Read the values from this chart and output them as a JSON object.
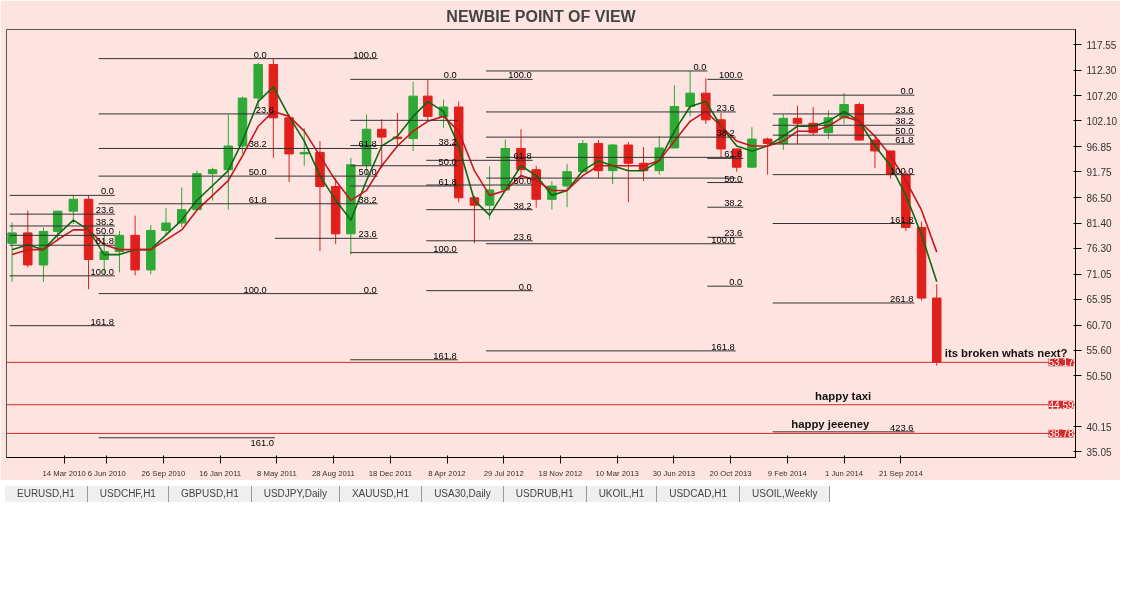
{
  "chart_data": {
    "type": "candlestick",
    "title": "NEWBIE POINT OF VIEW",
    "xlim": [
      "2009-11-20",
      "2015-09-01"
    ],
    "ylim": [
      33.9,
      120.6
    ],
    "xticks": [
      {
        "value": "2010-03-14",
        "label": "14 Mar 2010"
      },
      {
        "value": "2010-06-06",
        "label": "6 Jun 2010"
      },
      {
        "value": "2010-09-26",
        "label": "26 Sep 2010"
      },
      {
        "value": "2011-01-16",
        "label": "16 Jan 2011"
      },
      {
        "value": "2011-05-08",
        "label": "8 May 2011"
      },
      {
        "value": "2011-08-28",
        "label": "28 Aug 2011"
      },
      {
        "value": "2011-12-18",
        "label": "18 Dec 2011"
      },
      {
        "value": "2012-04-08",
        "label": "8 Apr 2012"
      },
      {
        "value": "2012-07-29",
        "label": "29 Jul 2012"
      },
      {
        "value": "2012-11-18",
        "label": "18 Nov 2012"
      },
      {
        "value": "2013-03-10",
        "label": "10 Mar 2013"
      },
      {
        "value": "2013-06-30",
        "label": "30 Jun 2013"
      },
      {
        "value": "2013-10-20",
        "label": "20 Oct 2013"
      },
      {
        "value": "2014-02-09",
        "label": "9 Feb 2014"
      },
      {
        "value": "2014-06-01",
        "label": "1 Jun 2014"
      },
      {
        "value": "2014-09-21",
        "label": "21 Sep 2014"
      }
    ],
    "yticks": [
      117.55,
      {
        "value": 112.3,
        "label": "112.30"
      },
      {
        "value": 107.2,
        "label": "107.20"
      },
      {
        "value": 102.1,
        "label": "102.10"
      },
      96.85,
      91.75,
      {
        "value": 86.5,
        "label": "86.50"
      },
      {
        "value": 81.4,
        "label": "81.40"
      },
      {
        "value": 76.3,
        "label": "76.30"
      },
      71.05,
      65.95,
      {
        "value": 60.7,
        "label": "60.70"
      },
      {
        "value": 55.6,
        "label": "55.60"
      },
      {
        "value": 50.5,
        "label": "50.50"
      },
      40.15,
      35.05
    ],
    "series": [
      {
        "x": [
          "2009-12",
          "2010-01",
          "2010-02",
          "2010-03",
          "2010-04",
          "2010-05",
          "2010-06",
          "2010-07",
          "2010-08",
          "2010-09",
          "2010-10",
          "2010-11",
          "2010-12",
          "2011-01",
          "2011-02",
          "2011-03",
          "2011-04",
          "2011-05",
          "2011-06",
          "2011-07",
          "2011-08",
          "2011-09",
          "2011-10",
          "2011-11",
          "2011-12",
          "2012-01",
          "2012-02",
          "2012-03",
          "2012-04",
          "2012-05",
          "2012-06",
          "2012-07",
          "2012-08",
          "2012-09",
          "2012-10",
          "2012-11",
          "2012-12",
          "2013-01",
          "2013-02",
          "2013-03",
          "2013-04",
          "2013-05",
          "2013-06",
          "2013-07",
          "2013-08",
          "2013-09",
          "2013-10",
          "2013-11",
          "2013-12",
          "2014-01",
          "2014-02",
          "2014-03",
          "2014-04",
          "2014-05",
          "2014-06",
          "2014-07",
          "2014-08",
          "2014-09",
          "2014-10",
          "2014-11",
          "2014-12"
        ],
        "ohlc": [
          [
            77.3,
            81.5,
            69.5,
            79.4
          ],
          [
            79.4,
            83.9,
            72.4,
            72.9
          ],
          [
            72.9,
            80.5,
            69.5,
            79.7
          ],
          [
            79.7,
            83.9,
            77.7,
            83.8
          ],
          [
            83.8,
            87.1,
            81.2,
            86.2
          ],
          [
            86.2,
            87.0,
            68.0,
            74.0
          ],
          [
            74.0,
            79.4,
            70.9,
            75.6
          ],
          [
            75.6,
            79.8,
            71.4,
            78.9
          ],
          [
            78.9,
            82.9,
            70.8,
            71.9
          ],
          [
            71.9,
            81.0,
            71.0,
            79.9
          ],
          [
            79.9,
            84.4,
            79.0,
            81.4
          ],
          [
            81.4,
            88.6,
            80.6,
            84.1
          ],
          [
            84.1,
            92.0,
            84.0,
            91.4
          ],
          [
            91.4,
            92.6,
            86.0,
            92.2
          ],
          [
            92.2,
            103.4,
            84.1,
            97.0
          ],
          [
            97.0,
            107.0,
            95.5,
            106.7
          ],
          [
            106.7,
            113.9,
            104.6,
            113.5
          ],
          [
            113.5,
            114.8,
            94.6,
            102.7
          ],
          [
            102.7,
            103.4,
            89.7,
            95.4
          ],
          [
            95.4,
            100.6,
            93.0,
            95.7
          ],
          [
            95.7,
            98.0,
            75.7,
            88.8
          ],
          [
            88.8,
            90.5,
            77.1,
            79.2
          ],
          [
            79.2,
            94.6,
            75.0,
            93.2
          ],
          [
            93.2,
            103.4,
            91.3,
            100.4
          ],
          [
            100.4,
            102.4,
            92.5,
            98.8
          ],
          [
            98.8,
            103.7,
            96.8,
            98.5
          ],
          [
            98.5,
            110.0,
            96.0,
            107.1
          ],
          [
            107.1,
            110.5,
            102.2,
            103.0
          ],
          [
            103.0,
            106.4,
            100.7,
            104.9
          ],
          [
            104.9,
            106.0,
            85.6,
            86.5
          ],
          [
            86.5,
            86.9,
            77.3,
            85.0
          ],
          [
            85.0,
            92.9,
            82.1,
            88.1
          ],
          [
            88.1,
            98.3,
            88.0,
            96.5
          ],
          [
            96.5,
            100.4,
            90.6,
            92.2
          ],
          [
            92.2,
            93.0,
            84.5,
            86.2
          ],
          [
            86.2,
            89.9,
            84.1,
            88.9
          ],
          [
            88.9,
            93.4,
            84.6,
            91.8
          ],
          [
            91.8,
            98.2,
            91.6,
            97.5
          ],
          [
            97.5,
            98.2,
            90.5,
            92.0
          ],
          [
            92.0,
            97.4,
            89.3,
            97.2
          ],
          [
            97.2,
            97.8,
            85.6,
            93.5
          ],
          [
            93.5,
            96.8,
            89.9,
            92.0
          ],
          [
            92.0,
            99.0,
            91.2,
            96.6
          ],
          [
            96.6,
            109.3,
            96.6,
            105.0
          ],
          [
            105.0,
            112.2,
            103.0,
            107.7
          ],
          [
            107.7,
            110.7,
            101.5,
            102.3
          ],
          [
            102.3,
            103.7,
            94.6,
            96.4
          ],
          [
            96.4,
            96.5,
            91.8,
            92.7
          ],
          [
            92.7,
            100.8,
            92.6,
            98.4
          ],
          [
            98.4,
            98.7,
            91.2,
            97.5
          ],
          [
            97.5,
            103.4,
            96.2,
            102.6
          ],
          [
            102.6,
            105.2,
            97.4,
            101.6
          ],
          [
            101.6,
            104.9,
            99.2,
            99.7
          ],
          [
            99.7,
            104.2,
            98.4,
            102.7
          ],
          [
            102.7,
            107.7,
            101.5,
            105.4
          ],
          [
            105.4,
            105.8,
            98.2,
            98.2
          ],
          [
            98.2,
            98.7,
            92.5,
            96.0
          ],
          [
            96.0,
            96.0,
            90.4,
            91.2
          ],
          [
            91.2,
            92.0,
            79.8,
            80.5
          ],
          [
            80.5,
            81.7,
            65.7,
            66.2
          ],
          [
            66.2,
            69.0,
            52.5,
            53.17
          ]
        ],
        "colors": [
          "#2fa836",
          "#e0201b",
          "#2fa836",
          "#2fa836",
          "#2fa836",
          "#e0201b",
          "#2fa836",
          "#2fa836",
          "#e0201b",
          "#2fa836",
          "#2fa836",
          "#2fa836",
          "#2fa836",
          "#2fa836",
          "#2fa836",
          "#2fa836",
          "#2fa836",
          "#e0201b",
          "#e0201b",
          "#2fa836",
          "#e0201b",
          "#e0201b",
          "#2fa836",
          "#2fa836",
          "#e0201b",
          "#e0201b",
          "#2fa836",
          "#e0201b",
          "#2fa836",
          "#e0201b",
          "#e0201b",
          "#2fa836",
          "#2fa836",
          "#e0201b",
          "#e0201b",
          "#2fa836",
          "#2fa836",
          "#2fa836",
          "#e0201b",
          "#2fa836",
          "#e0201b",
          "#e0201b",
          "#2fa836",
          "#2fa836",
          "#2fa836",
          "#e0201b",
          "#e0201b",
          "#e0201b",
          "#2fa836",
          "#e0201b",
          "#2fa836",
          "#e0201b",
          "#e0201b",
          "#2fa836",
          "#2fa836",
          "#e0201b",
          "#e0201b",
          "#e0201b",
          "#e0201b",
          "#e0201b",
          "#e0201b"
        ]
      },
      {
        "type": "line",
        "color": "#0b6b12",
        "x": [
          "2009-12",
          "2010-01",
          "2010-02",
          "2010-03",
          "2010-04",
          "2010-05",
          "2010-06",
          "2010-07",
          "2010-08",
          "2010-09",
          "2010-10",
          "2010-11",
          "2010-12",
          "2011-01",
          "2011-02",
          "2011-03",
          "2011-04",
          "2011-05",
          "2011-06",
          "2011-07",
          "2011-08",
          "2011-09",
          "2011-10",
          "2011-11",
          "2011-12",
          "2012-01",
          "2012-02",
          "2012-03",
          "2012-04",
          "2012-05",
          "2012-06",
          "2012-07",
          "2012-08",
          "2012-09",
          "2012-10",
          "2012-11",
          "2012-12",
          "2013-01",
          "2013-02",
          "2013-03",
          "2013-04",
          "2013-05",
          "2013-06",
          "2013-07",
          "2013-08",
          "2013-09",
          "2013-10",
          "2013-11",
          "2013-12",
          "2014-01",
          "2014-02",
          "2014-03",
          "2014-04",
          "2014-05",
          "2014-06",
          "2014-07",
          "2014-08",
          "2014-09",
          "2014-10",
          "2014-11",
          "2014-12"
        ],
        "values": [
          76,
          77,
          76,
          79,
          82,
          80,
          75,
          75,
          76,
          76,
          79,
          82,
          86,
          89,
          92,
          98,
          106,
          109,
          103,
          98,
          91,
          86,
          82,
          90,
          97,
          99,
          103,
          106,
          104,
          97,
          86,
          83,
          88,
          93,
          91,
          87,
          88,
          92,
          94,
          93,
          92,
          92,
          94,
          100,
          105,
          106,
          101,
          97,
          96,
          97,
          99,
          101,
          101,
          102,
          104,
          102,
          97,
          93,
          87,
          79,
          69.5
        ]
      },
      {
        "type": "line",
        "color": "#c8161d",
        "x": [
          "2009-12",
          "2010-01",
          "2010-02",
          "2010-03",
          "2010-04",
          "2010-05",
          "2010-06",
          "2010-07",
          "2010-08",
          "2010-09",
          "2010-10",
          "2010-11",
          "2010-12",
          "2011-01",
          "2011-02",
          "2011-03",
          "2011-04",
          "2011-05",
          "2011-06",
          "2011-07",
          "2011-08",
          "2011-09",
          "2011-10",
          "2011-11",
          "2011-12",
          "2012-01",
          "2012-02",
          "2012-03",
          "2012-04",
          "2012-05",
          "2012-06",
          "2012-07",
          "2012-08",
          "2012-09",
          "2012-10",
          "2012-11",
          "2012-12",
          "2013-01",
          "2013-02",
          "2013-03",
          "2013-04",
          "2013-05",
          "2013-06",
          "2013-07",
          "2013-08",
          "2013-09",
          "2013-10",
          "2013-11",
          "2013-12",
          "2014-01",
          "2014-02",
          "2014-03",
          "2014-04",
          "2014-05",
          "2014-06",
          "2014-07",
          "2014-08",
          "2014-09",
          "2014-10",
          "2014-11",
          "2014-12"
        ],
        "values": [
          75,
          76,
          76,
          78,
          80,
          80,
          77,
          76,
          76,
          76,
          78,
          80,
          84,
          87,
          90,
          95,
          101,
          104,
          103,
          100,
          95,
          90,
          86,
          88,
          93,
          97,
          100,
          102,
          103,
          100,
          92,
          87,
          88,
          91,
          90,
          88,
          88,
          91,
          93,
          93,
          93,
          93,
          94,
          98,
          102,
          104,
          101,
          98,
          97,
          97,
          98,
          100,
          100,
          101,
          103,
          102,
          99,
          95,
          90,
          84,
          75.5
        ]
      },
      {
        "type": "line",
        "color": "#333333",
        "x": [
          "2009-11-26",
          "2010-06-22"
        ],
        "values": [
          87.0,
          87.0
        ]
      },
      {
        "type": "line",
        "color": "#333333",
        "x": [
          "2009-11-26",
          "2010-06-22"
        ],
        "values": [
          83.2,
          83.2
        ]
      },
      {
        "type": "line",
        "color": "#333333",
        "x": [
          "2009-11-26",
          "2010-06-22"
        ],
        "values": [
          80.8,
          80.8
        ]
      },
      {
        "type": "line",
        "color": "#333333",
        "x": [
          "2009-11-26",
          "2010-06-22"
        ],
        "values": [
          78.9,
          78.9
        ]
      },
      {
        "type": "line",
        "color": "#333333",
        "x": [
          "2009-11-26",
          "2010-06-22"
        ],
        "values": [
          76.9,
          76.9
        ]
      },
      {
        "type": "line",
        "color": "#333333",
        "x": [
          "2009-11-26",
          "2010-06-22"
        ],
        "values": [
          70.7,
          70.7
        ]
      },
      {
        "type": "line",
        "color": "#333333",
        "x": [
          "2009-11-26",
          "2010-06-22"
        ],
        "values": [
          60.6,
          60.6
        ]
      },
      {
        "type": "line",
        "color": "#333333",
        "x": [
          "2010-05-21",
          "2011-04-20",
          "2011-11-23"
        ],
        "values": [
          114.7,
          114.7,
          114.7
        ]
      },
      {
        "type": "line",
        "color": "#333333",
        "x": [
          "2010-05-21",
          "2011-04-20",
          "2011-11-23"
        ],
        "values": [
          96.5,
          96.5,
          96.5
        ]
      },
      {
        "type": "line",
        "color": "#333333",
        "x": [
          "2010-05-21",
          "2011-04-20",
          "2011-11-23"
        ],
        "values": [
          90.9,
          90.9,
          90.9
        ]
      },
      {
        "type": "line",
        "color": "#333333",
        "x": [
          "2010-05-21",
          "2011-04-20",
          "2011-11-23"
        ],
        "values": [
          85.3,
          85.3,
          85.3
        ]
      },
      {
        "type": "line",
        "color": "#333333",
        "x": [
          "2010-05-21",
          "2011-04-20",
          "2011-11-23"
        ],
        "values": [
          67.1,
          67.1,
          67.1
        ]
      },
      {
        "type": "line",
        "color": "#333333",
        "x": [
          "2010-05-21",
          "2011-05-04"
        ],
        "values": [
          103.5,
          103.5
        ]
      },
      {
        "type": "line",
        "color": "#333333",
        "x": [
          "2010-05-21",
          "2011-05-04"
        ],
        "values": [
          37.9,
          37.9
        ]
      },
      {
        "type": "line",
        "color": "#333333",
        "x": [
          "2011-05-04",
          "2011-11-23"
        ],
        "values": [
          78.3,
          78.3
        ]
      },
      {
        "type": "line",
        "color": "#333333",
        "x": [
          "2011-09-30",
          "2012-04-29",
          "2012-09-24"
        ],
        "values": [
          110.5,
          110.5,
          110.5
        ]
      },
      {
        "type": "line",
        "color": "#333333",
        "x": [
          "2011-09-30",
          "2012-04-29"
        ],
        "values": [
          102.2,
          102.2
        ]
      },
      {
        "type": "line",
        "color": "#333333",
        "x": [
          "2011-09-30",
          "2012-04-29"
        ],
        "values": [
          97.1,
          97.1
        ]
      },
      {
        "type": "line",
        "color": "#333333",
        "x": [
          "2011-09-30",
          "2012-04-29"
        ],
        "values": [
          93.0,
          93.0
        ]
      },
      {
        "type": "line",
        "color": "#333333",
        "x": [
          "2011-09-30",
          "2012-04-29"
        ],
        "values": [
          88.9,
          88.9
        ]
      },
      {
        "type": "line",
        "color": "#333333",
        "x": [
          "2011-09-30",
          "2012-04-29"
        ],
        "values": [
          75.4,
          75.4
        ]
      },
      {
        "type": "line",
        "color": "#333333",
        "x": [
          "2011-09-30",
          "2012-04-29"
        ],
        "values": [
          53.7,
          53.7
        ]
      },
      {
        "type": "line",
        "color": "#333333",
        "x": [
          "2012-02-27",
          "2012-09-24"
        ],
        "values": [
          94.1,
          94.1
        ]
      },
      {
        "type": "line",
        "color": "#333333",
        "x": [
          "2012-02-27",
          "2012-09-24"
        ],
        "values": [
          89.1,
          89.1
        ]
      },
      {
        "type": "line",
        "color": "#333333",
        "x": [
          "2012-02-27",
          "2012-09-24"
        ],
        "values": [
          84.1,
          84.1
        ]
      },
      {
        "type": "line",
        "color": "#333333",
        "x": [
          "2012-02-27",
          "2012-09-24"
        ],
        "values": [
          77.8,
          77.8
        ]
      },
      {
        "type": "line",
        "color": "#333333",
        "x": [
          "2012-02-27",
          "2012-09-24"
        ],
        "values": [
          67.7,
          67.7
        ]
      },
      {
        "type": "line",
        "color": "#333333",
        "x": [
          "2012-06-24",
          "2013-09-04"
        ],
        "values": [
          112.2,
          112.2
        ]
      },
      {
        "type": "line",
        "color": "#333333",
        "x": [
          "2012-06-24",
          "2013-10-30"
        ],
        "values": [
          103.9,
          103.9
        ]
      },
      {
        "type": "line",
        "color": "#333333",
        "x": [
          "2012-06-24",
          "2013-10-30"
        ],
        "values": [
          98.8,
          98.8
        ]
      },
      {
        "type": "line",
        "color": "#333333",
        "x": [
          "2012-06-24",
          "2013-10-30"
        ],
        "values": [
          94.7,
          94.7
        ]
      },
      {
        "type": "line",
        "color": "#333333",
        "x": [
          "2012-06-24",
          "2013-10-30"
        ],
        "values": [
          90.5,
          90.5
        ]
      },
      {
        "type": "line",
        "color": "#333333",
        "x": [
          "2012-06-24",
          "2013-10-30"
        ],
        "values": [
          77.2,
          77.2
        ]
      },
      {
        "type": "line",
        "color": "#333333",
        "x": [
          "2012-06-24",
          "2013-10-30"
        ],
        "values": [
          55.5,
          55.5
        ]
      },
      {
        "type": "line",
        "color": "#333333",
        "x": [
          "2013-09-04",
          "2013-11-14"
        ],
        "values": [
          110.5,
          110.5
        ]
      },
      {
        "type": "line",
        "color": "#333333",
        "x": [
          "2013-09-04",
          "2013-11-14"
        ],
        "values": [
          94.5,
          94.5
        ]
      },
      {
        "type": "line",
        "color": "#333333",
        "x": [
          "2013-09-04",
          "2013-11-14"
        ],
        "values": [
          89.6,
          89.6
        ]
      },
      {
        "type": "line",
        "color": "#333333",
        "x": [
          "2013-09-04",
          "2013-11-14"
        ],
        "values": [
          84.6,
          84.6
        ]
      },
      {
        "type": "line",
        "color": "#333333",
        "x": [
          "2013-09-04",
          "2013-11-14"
        ],
        "values": [
          78.5,
          78.5
        ]
      },
      {
        "type": "line",
        "color": "#333333",
        "x": [
          "2013-09-04",
          "2013-11-14"
        ],
        "values": [
          68.6,
          68.6
        ]
      },
      {
        "type": "line",
        "color": "#333333",
        "x": [
          "2014-01-11",
          "2014-10-18"
        ],
        "values": [
          107.3,
          107.3
        ]
      },
      {
        "type": "line",
        "color": "#333333",
        "x": [
          "2014-01-11",
          "2014-10-18"
        ],
        "values": [
          103.5,
          103.5
        ]
      },
      {
        "type": "line",
        "color": "#333333",
        "x": [
          "2014-01-11",
          "2014-10-18"
        ],
        "values": [
          101.2,
          101.2
        ]
      },
      {
        "type": "line",
        "color": "#333333",
        "x": [
          "2014-01-11",
          "2014-10-18"
        ],
        "values": [
          99.2,
          99.2
        ]
      },
      {
        "type": "line",
        "color": "#333333",
        "x": [
          "2014-01-11",
          "2014-10-18"
        ],
        "values": [
          97.4,
          97.4
        ]
      },
      {
        "type": "line",
        "color": "#333333",
        "x": [
          "2014-01-11",
          "2014-10-18"
        ],
        "values": [
          91.2,
          91.2
        ]
      },
      {
        "type": "line",
        "color": "#333333",
        "x": [
          "2014-01-11",
          "2014-10-18"
        ],
        "values": [
          81.3,
          81.3
        ]
      },
      {
        "type": "line",
        "color": "#333333",
        "x": [
          "2014-01-11",
          "2014-10-18"
        ],
        "values": [
          65.2,
          65.2
        ]
      },
      {
        "type": "line",
        "color": "#333333",
        "x": [
          "2014-01-11",
          "2014-10-18"
        ],
        "values": [
          39.1,
          39.1
        ]
      }
    ],
    "ref_lines": [
      {
        "axis": "y",
        "value": 53.17,
        "label": "53.17",
        "color": "#d42a2a"
      },
      {
        "axis": "y",
        "value": 44.59,
        "label": "44.59",
        "color": "#d42a2a"
      },
      {
        "axis": "y",
        "value": 38.78,
        "label": "38.78",
        "color": "#d42a2a"
      }
    ],
    "annotations": [
      {
        "text": "its broken whats next?",
        "x": "2014-12",
        "y": 53.17
      },
      {
        "text": "happy taxi",
        "x": "2014-03-20",
        "y": 44.59
      },
      {
        "text": "happy jeeeney",
        "x": "2014-02-01",
        "y": 38.78
      },
      {
        "text": "0.0",
        "x": "2010-06-22",
        "y": 87.0
      },
      {
        "text": "23.6",
        "x": "2010-06-22",
        "y": 83.2
      },
      {
        "text": "38.2",
        "x": "2010-06-22",
        "y": 80.8
      },
      {
        "text": "50.0",
        "x": "2010-06-22",
        "y": 78.9
      },
      {
        "text": "61.8",
        "x": "2010-06-22",
        "y": 76.9
      },
      {
        "text": "100.0",
        "x": "2010-06-22",
        "y": 70.7
      },
      {
        "text": "161.8",
        "x": "2010-06-22",
        "y": 60.6
      },
      {
        "text": "0.0",
        "x": "2011-04-20",
        "y": 114.7
      },
      {
        "text": "38.2",
        "x": "2011-04-20",
        "y": 96.5
      },
      {
        "text": "50.0",
        "x": "2011-04-20",
        "y": 90.9
      },
      {
        "text": "61.8",
        "x": "2011-04-20",
        "y": 85.3
      },
      {
        "text": "100.0",
        "x": "2011-04-20",
        "y": 67.1
      },
      {
        "text": "23.6",
        "x": "2011-05-04",
        "y": 103.5
      },
      {
        "text": "161.0",
        "x": "2011-05-04",
        "y": 37.9
      },
      {
        "text": "100.0",
        "x": "2011-11-23",
        "y": 114.7
      },
      {
        "text": "61.8",
        "x": "2011-11-23",
        "y": 96.5
      },
      {
        "text": "50.0",
        "x": "2011-11-23",
        "y": 90.9
      },
      {
        "text": "38.2",
        "x": "2011-11-23",
        "y": 85.3
      },
      {
        "text": "23.6",
        "x": "2011-11-23",
        "y": 78.3
      },
      {
        "text": "0.0",
        "x": "2011-11-23",
        "y": 67.1
      },
      {
        "text": "0.0",
        "x": "2012-04-29",
        "y": 110.5
      },
      {
        "text": "38.2",
        "x": "2012-04-29",
        "y": 97.1
      },
      {
        "text": "50.0",
        "x": "2012-04-29",
        "y": 93.0
      },
      {
        "text": "61.8",
        "x": "2012-04-29",
        "y": 88.9
      },
      {
        "text": "100.0",
        "x": "2012-04-29",
        "y": 75.4
      },
      {
        "text": "161.8",
        "x": "2012-04-29",
        "y": 53.7
      },
      {
        "text": "100.0",
        "x": "2012-09-24",
        "y": 110.5
      },
      {
        "text": "61.8",
        "x": "2012-09-24",
        "y": 94.1
      },
      {
        "text": "50.0",
        "x": "2012-09-24",
        "y": 89.1
      },
      {
        "text": "38.2",
        "x": "2012-09-24",
        "y": 84.1
      },
      {
        "text": "23.6",
        "x": "2012-09-24",
        "y": 77.8
      },
      {
        "text": "0.0",
        "x": "2012-09-24",
        "y": 67.7
      },
      {
        "text": "0.0",
        "x": "2013-09-04",
        "y": 112.2
      },
      {
        "text": "23.6",
        "x": "2013-10-30",
        "y": 103.9
      },
      {
        "text": "38.2",
        "x": "2013-10-30",
        "y": 98.8
      },
      {
        "text": "100.0",
        "x": "2013-10-30",
        "y": 77.2
      },
      {
        "text": "161.8",
        "x": "2013-10-30",
        "y": 55.5
      },
      {
        "text": "100.0",
        "x": "2013-11-14",
        "y": 110.5
      },
      {
        "text": "61.8",
        "x": "2013-11-14",
        "y": 94.5
      },
      {
        "text": "50.0",
        "x": "2013-11-14",
        "y": 89.6
      },
      {
        "text": "38.2",
        "x": "2013-11-14",
        "y": 84.6
      },
      {
        "text": "23.6",
        "x": "2013-11-14",
        "y": 78.5
      },
      {
        "text": "0.0",
        "x": "2013-11-14",
        "y": 68.6
      },
      {
        "text": "0.0",
        "x": "2014-10-18",
        "y": 107.3
      },
      {
        "text": "23.6",
        "x": "2014-10-18",
        "y": 103.5
      },
      {
        "text": "38.2",
        "x": "2014-10-18",
        "y": 101.2
      },
      {
        "text": "50.0",
        "x": "2014-10-18",
        "y": 99.2
      },
      {
        "text": "61.8",
        "x": "2014-10-18",
        "y": 97.4
      },
      {
        "text": "100.0",
        "x": "2014-10-18",
        "y": 91.2
      },
      {
        "text": "161.8",
        "x": "2014-10-18",
        "y": 81.3
      },
      {
        "text": "261.8",
        "x": "2014-10-18",
        "y": 65.2
      },
      {
        "text": "423.6",
        "x": "2014-10-18",
        "y": 39.1
      },
      "EURUSD,H1",
      "USDCHF,H1",
      "GBPUSD,H1",
      "USDJPY,Daily",
      "XAUUSD,H1",
      "USA30,Daily",
      "USDRUB,H1",
      "UKOIL,H1",
      "USDCAD,H1",
      "USOIL,Weekly"
    ]
  }
}
